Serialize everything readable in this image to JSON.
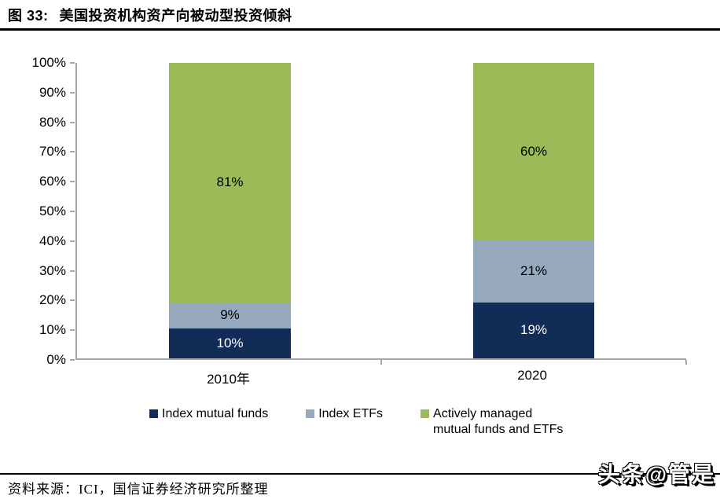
{
  "figure": {
    "prefix": "图 33:",
    "title": "美国投资机构资产向被动型投资倾斜"
  },
  "chart_data": {
    "type": "bar",
    "stacked": true,
    "title": "图 33: 美国投资机构资产向被动型投资倾斜",
    "categories": [
      "2010年",
      "2020"
    ],
    "series": [
      {
        "name": "Index mutual funds",
        "values": [
          10,
          19
        ],
        "color": "#112C56",
        "label_color": "#FFFFFF"
      },
      {
        "name": "Index ETFs",
        "values": [
          9,
          21
        ],
        "color": "#96A9BD",
        "label_color": "#000000"
      },
      {
        "name": "Actively managed mutual funds and ETFs",
        "values": [
          81,
          60
        ],
        "color": "#9BBB59",
        "label_color": "#000000"
      }
    ],
    "value_suffix": "%",
    "y_ticks": [
      0,
      10,
      20,
      30,
      40,
      50,
      60,
      70,
      80,
      90,
      100
    ],
    "ylim": [
      0,
      100
    ],
    "grid": false,
    "legend_position": "bottom",
    "axis_color": "#A6A6A6"
  },
  "footer": {
    "source": "资料来源：ICI，国信证券经济研究所整理"
  },
  "watermark": "头条@管是"
}
